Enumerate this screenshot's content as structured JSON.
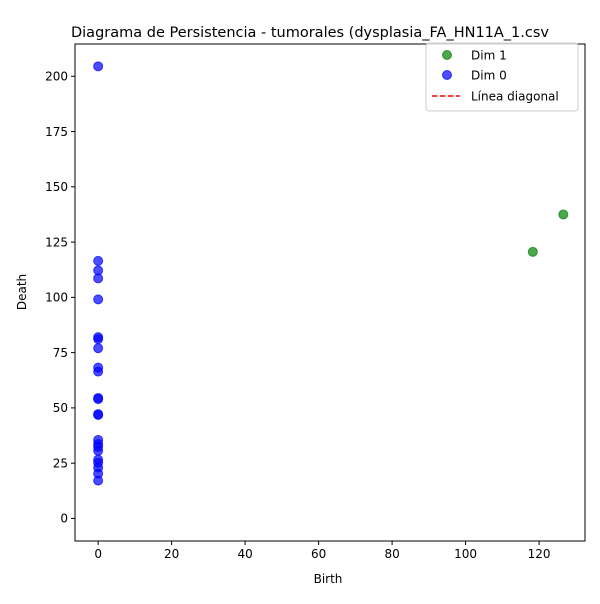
{
  "chart_data": {
    "type": "scatter",
    "title": "Diagrama de Persistencia - tumorales (dysplasia_FA_HN11A_1.csv",
    "xlabel": "Birth",
    "ylabel": "Death",
    "xlim": [
      -6.3,
      132.5
    ],
    "ylim": [
      -10.2,
      214.6
    ],
    "x_ticks": [
      0,
      20,
      40,
      60,
      80,
      100,
      120
    ],
    "y_ticks": [
      0,
      25,
      50,
      75,
      100,
      125,
      150,
      175,
      200
    ],
    "grid": false,
    "legend_position": "top-right",
    "series": [
      {
        "name": "Dim 1",
        "color": "#008000",
        "points": [
          {
            "x": 118.3,
            "y": 120.6
          },
          {
            "x": 126.6,
            "y": 137.5
          }
        ]
      },
      {
        "name": "Dim 0",
        "color": "#0000ff",
        "points": [
          {
            "x": 0,
            "y": 204.5
          },
          {
            "x": 0,
            "y": 116.5
          },
          {
            "x": 0,
            "y": 112.2
          },
          {
            "x": 0,
            "y": 108.6
          },
          {
            "x": 0,
            "y": 99.1
          },
          {
            "x": 0,
            "y": 82.0
          },
          {
            "x": 0,
            "y": 81.1
          },
          {
            "x": 0,
            "y": 77.0
          },
          {
            "x": 0,
            "y": 68.2
          },
          {
            "x": 0,
            "y": 66.4
          },
          {
            "x": 0,
            "y": 54.5
          },
          {
            "x": 0,
            "y": 54.0
          },
          {
            "x": 0,
            "y": 47.2
          },
          {
            "x": 0,
            "y": 46.8
          },
          {
            "x": 0,
            "y": 35.5
          },
          {
            "x": 0,
            "y": 33.7
          },
          {
            "x": 0,
            "y": 32.4
          },
          {
            "x": 0,
            "y": 30.6
          },
          {
            "x": 0,
            "y": 26.6
          },
          {
            "x": 0,
            "y": 25.2
          },
          {
            "x": 0,
            "y": 23.0
          },
          {
            "x": 0,
            "y": 20.3
          },
          {
            "x": 0,
            "y": 17.1
          }
        ]
      }
    ],
    "reference_line": {
      "name": "Línea diagonal",
      "color": "#ff0000",
      "style": "dashed"
    }
  }
}
